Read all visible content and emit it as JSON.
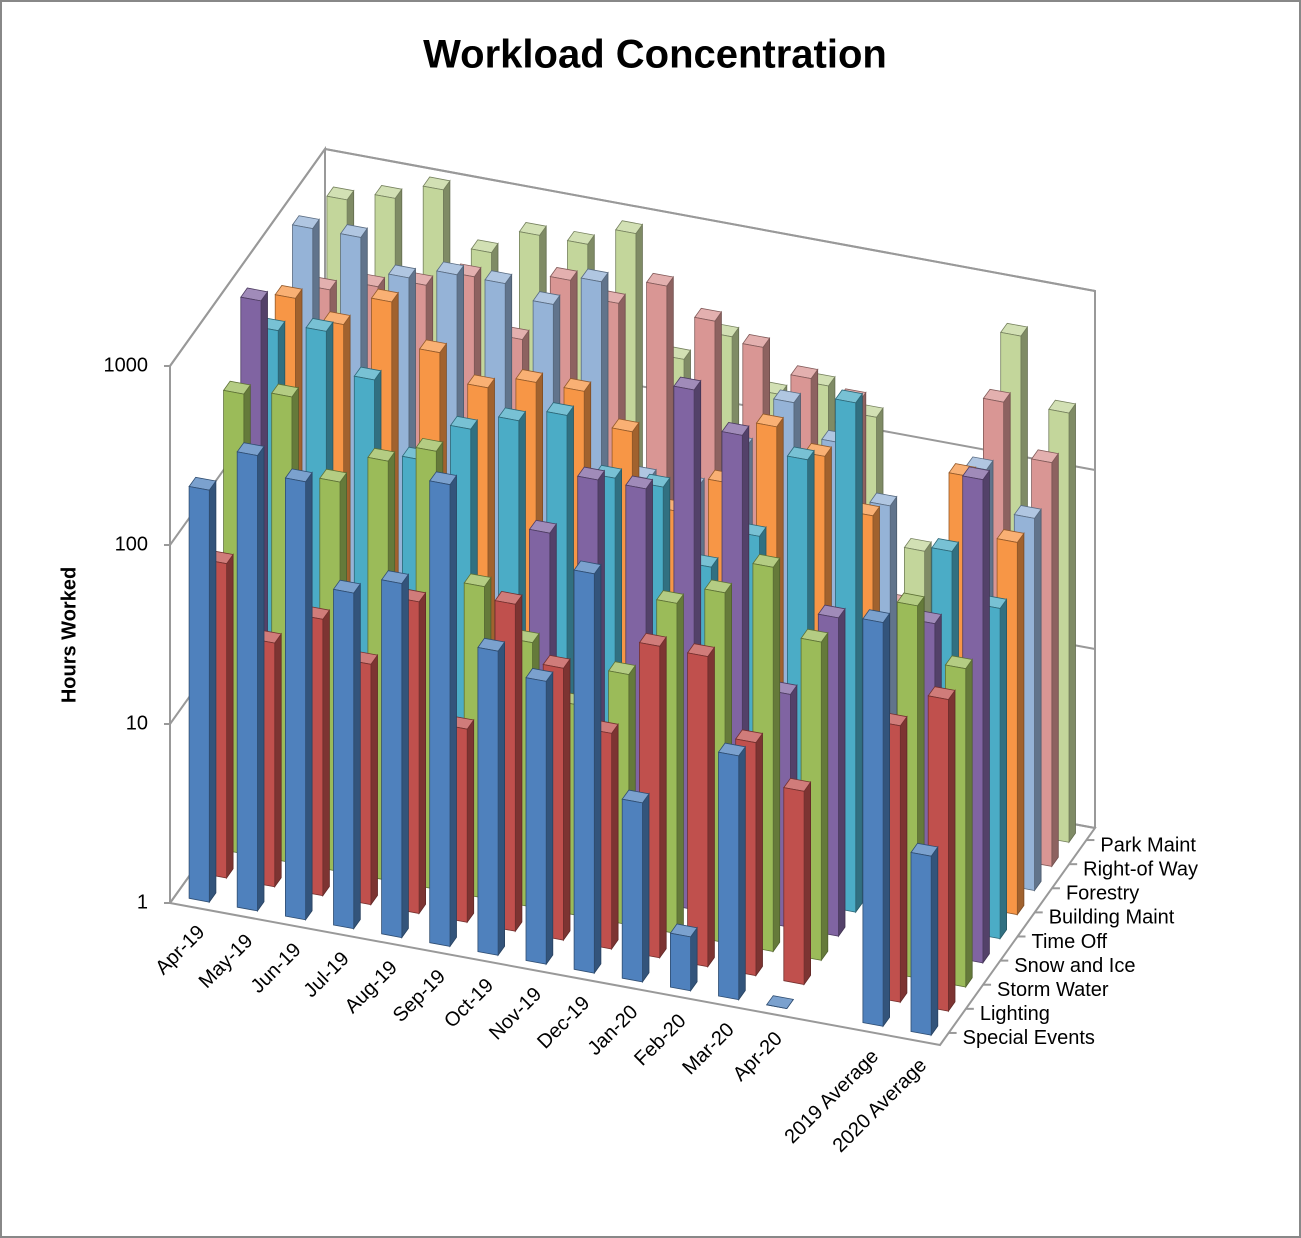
{
  "chart_data": {
    "type": "bar3d",
    "title": "Workload Concentration",
    "y_label": "Hours Worked",
    "log_scale": true,
    "ylim": [
      1,
      1000
    ],
    "yticks": [
      1,
      10,
      100,
      1000
    ],
    "categories": [
      "Apr-19",
      "May-19",
      "Jun-19",
      "Jul-19",
      "Aug-19",
      "Sep-19",
      "Oct-19",
      "Nov-19",
      "Dec-19",
      "Jan-20",
      "Feb-20",
      "Mar-20",
      "Apr-20",
      null,
      "2019 Average",
      "2020 Average"
    ],
    "series": [
      {
        "name": "Special Events",
        "color": "#4f81bd",
        "values": [
          200,
          350,
          280,
          75,
          95,
          380,
          50,
          38,
          170,
          10,
          2,
          23,
          1,
          null,
          180,
          10
        ]
      },
      {
        "name": "Lighting",
        "color": "#c0504d",
        "values": [
          57,
          23,
          35,
          22,
          55,
          12,
          67,
          33,
          16,
          55,
          54,
          20,
          12,
          null,
          35,
          55
        ]
      },
      {
        "name": "Storm Water",
        "color": "#9bbb59",
        "values": [
          370,
          400,
          150,
          220,
          280,
          55,
          30,
          15,
          25,
          70,
          90,
          140,
          60,
          null,
          120,
          60
        ]
      },
      {
        "name": "Snow and Ice",
        "color": "#8064a2",
        "values": [
          900,
          2,
          2,
          2,
          2,
          2,
          90,
          200,
          200,
          800,
          500,
          20,
          60,
          null,
          70,
          500
        ]
      },
      {
        "name": "Time Off",
        "color": "#4bacc6",
        "values": [
          450,
          500,
          300,
          120,
          200,
          250,
          300,
          150,
          150,
          60,
          100,
          300,
          700,
          null,
          130,
          70
        ]
      },
      {
        "name": "Building Maint",
        "color": "#f79646",
        "values": [
          500,
          400,
          600,
          350,
          250,
          300,
          300,
          200,
          80,
          130,
          300,
          230,
          120,
          null,
          250,
          120
        ]
      },
      {
        "name": "Forestry",
        "color": "#95b3d7",
        "values": [
          900,
          900,
          600,
          700,
          700,
          600,
          900,
          80,
          80,
          150,
          300,
          200,
          100,
          null,
          200,
          120
        ]
      },
      {
        "name": "Right-of Way",
        "color": "#d99694",
        "values": [
          300,
          350,
          400,
          500,
          250,
          600,
          500,
          700,
          500,
          400,
          300,
          250,
          20,
          null,
          350,
          180
        ]
      },
      {
        "name": "Park Maint",
        "color": "#c3d69b",
        "values": [
          700,
          800,
          1000,
          500,
          700,
          700,
          900,
          200,
          300,
          160,
          200,
          150,
          30,
          null,
          600,
          250
        ]
      }
    ]
  }
}
